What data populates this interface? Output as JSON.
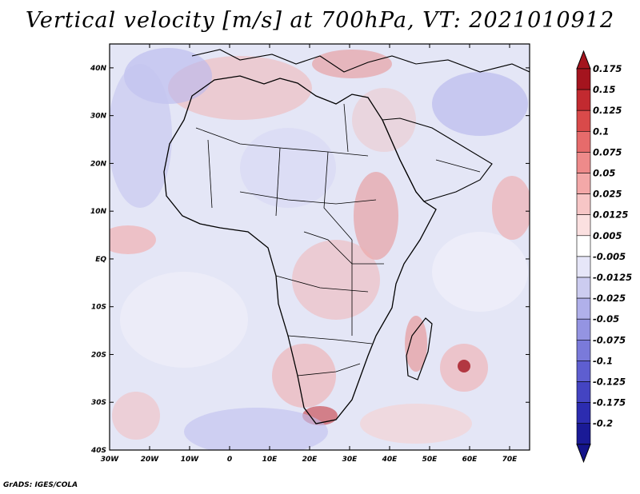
{
  "title": "Vertical velocity [m/s] at 700hPa, VT: 2021010912",
  "credit": "GrADS: IGES/COLA",
  "map": {
    "lat_labels": [
      "40N",
      "30N",
      "20N",
      "10N",
      "EQ",
      "10S",
      "20S",
      "30S",
      "40S"
    ],
    "lon_labels": [
      "30W",
      "20W",
      "10W",
      "0",
      "10E",
      "20E",
      "30E",
      "40E",
      "50E",
      "60E",
      "70E"
    ],
    "lon_range": [
      -30,
      75
    ],
    "lat_range": [
      -40,
      45
    ],
    "base_color": "#e4e6f6"
  },
  "colorbar": {
    "levels": [
      "0.175",
      "0.15",
      "0.125",
      "0.1",
      "0.075",
      "0.05",
      "0.025",
      "0.0125",
      "0.005",
      "-0.005",
      "-0.0125",
      "-0.025",
      "-0.05",
      "-0.075",
      "-0.1",
      "-0.125",
      "-0.175",
      "-0.2"
    ],
    "colors": [
      "#a4141e",
      "#c22a30",
      "#d94a4a",
      "#e66b6b",
      "#ee8a8a",
      "#f3a8a8",
      "#f7c6c6",
      "#fbe0e0",
      "#ffffff",
      "#e6e6f8",
      "#ccccf0",
      "#b0b0ea",
      "#9494e2",
      "#7a7ada",
      "#5e5ed0",
      "#4444c2",
      "#2c2cb0",
      "#1a1a96"
    ],
    "top_color": "#a4141e",
    "bottom_color": "#14148a"
  }
}
